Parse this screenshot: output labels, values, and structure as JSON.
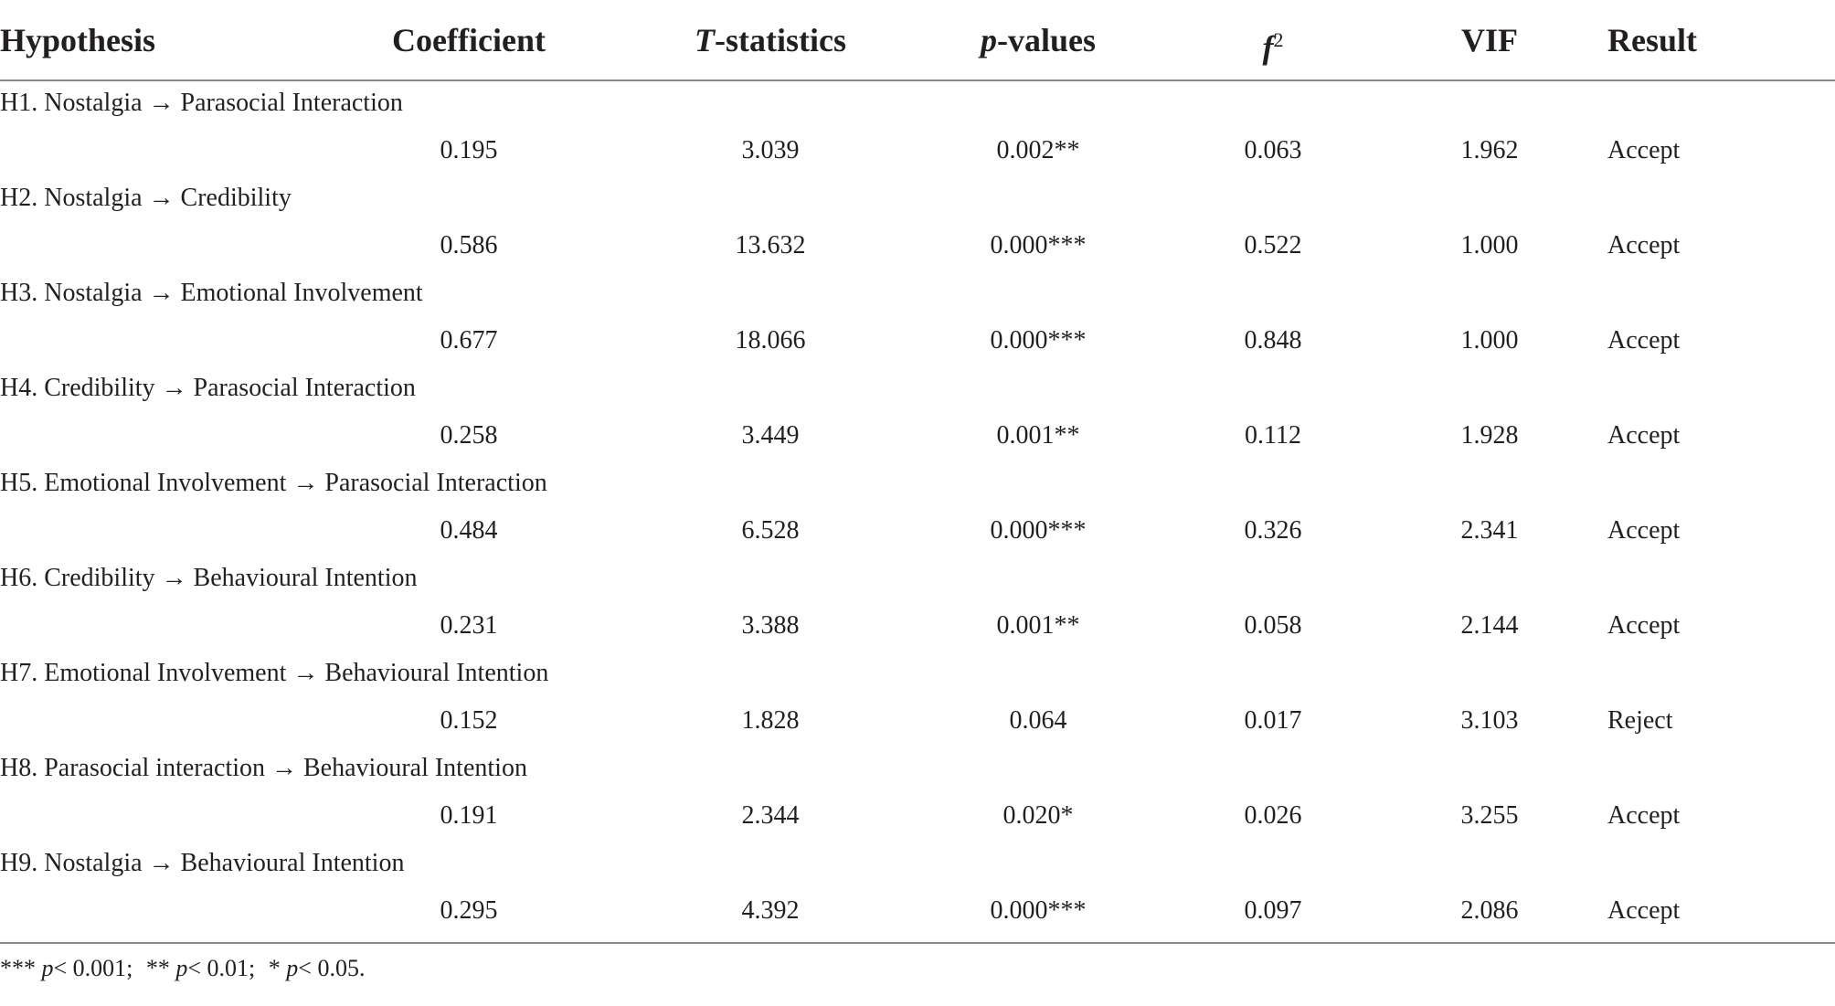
{
  "table": {
    "headers": {
      "hypothesis": "Hypothesis",
      "coefficient": "Coefficient",
      "t_italic": "T",
      "t_rest": "-statistics",
      "p_italic": "p",
      "p_rest": "-values",
      "f_italic": "f",
      "f_sup": "2",
      "vif": "VIF",
      "result": "Result"
    },
    "rows": [
      {
        "hypothesis": "H1. Nostalgia → Parasocial Interaction",
        "coefficient": "0.195",
        "t": "3.039",
        "p": "0.002**",
        "f2": "0.063",
        "vif": "1.962",
        "result": "Accept"
      },
      {
        "hypothesis": "H2. Nostalgia → Credibility",
        "coefficient": "0.586",
        "t": "13.632",
        "p": "0.000***",
        "f2": "0.522",
        "vif": "1.000",
        "result": "Accept"
      },
      {
        "hypothesis": "H3. Nostalgia → Emotional Involvement",
        "coefficient": "0.677",
        "t": "18.066",
        "p": "0.000***",
        "f2": "0.848",
        "vif": "1.000",
        "result": "Accept"
      },
      {
        "hypothesis": "H4. Credibility → Parasocial Interaction",
        "coefficient": "0.258",
        "t": "3.449",
        "p": "0.001**",
        "f2": "0.112",
        "vif": "1.928",
        "result": "Accept"
      },
      {
        "hypothesis": "H5. Emotional Involvement → Parasocial Interaction",
        "coefficient": "0.484",
        "t": "6.528",
        "p": "0.000***",
        "f2": "0.326",
        "vif": "2.341",
        "result": "Accept"
      },
      {
        "hypothesis": "H6. Credibility → Behavioural Intention",
        "coefficient": "0.231",
        "t": "3.388",
        "p": "0.001**",
        "f2": "0.058",
        "vif": "2.144",
        "result": "Accept"
      },
      {
        "hypothesis": "H7. Emotional Involvement → Behavioural Intention",
        "coefficient": "0.152",
        "t": "1.828",
        "p": "0.064",
        "f2": "0.017",
        "vif": "3.103",
        "result": "Reject"
      },
      {
        "hypothesis": "H8. Parasocial interaction → Behavioural Intention",
        "coefficient": "0.191",
        "t": "2.344",
        "p": "0.020*",
        "f2": "0.026",
        "vif": "3.255",
        "result": "Accept"
      },
      {
        "hypothesis": "H9. Nostalgia → Behavioural Intention",
        "coefficient": "0.295",
        "t": "4.392",
        "p": "0.000***",
        "f2": "0.097",
        "vif": "2.086",
        "result": "Accept"
      }
    ]
  },
  "footnote": {
    "items": [
      {
        "stars": "***",
        "p": "p",
        "cond": "< 0.001;"
      },
      {
        "stars": "**",
        "p": "p",
        "cond": "< 0.01;"
      },
      {
        "stars": "*",
        "p": "p",
        "cond": "< 0.05."
      }
    ]
  }
}
